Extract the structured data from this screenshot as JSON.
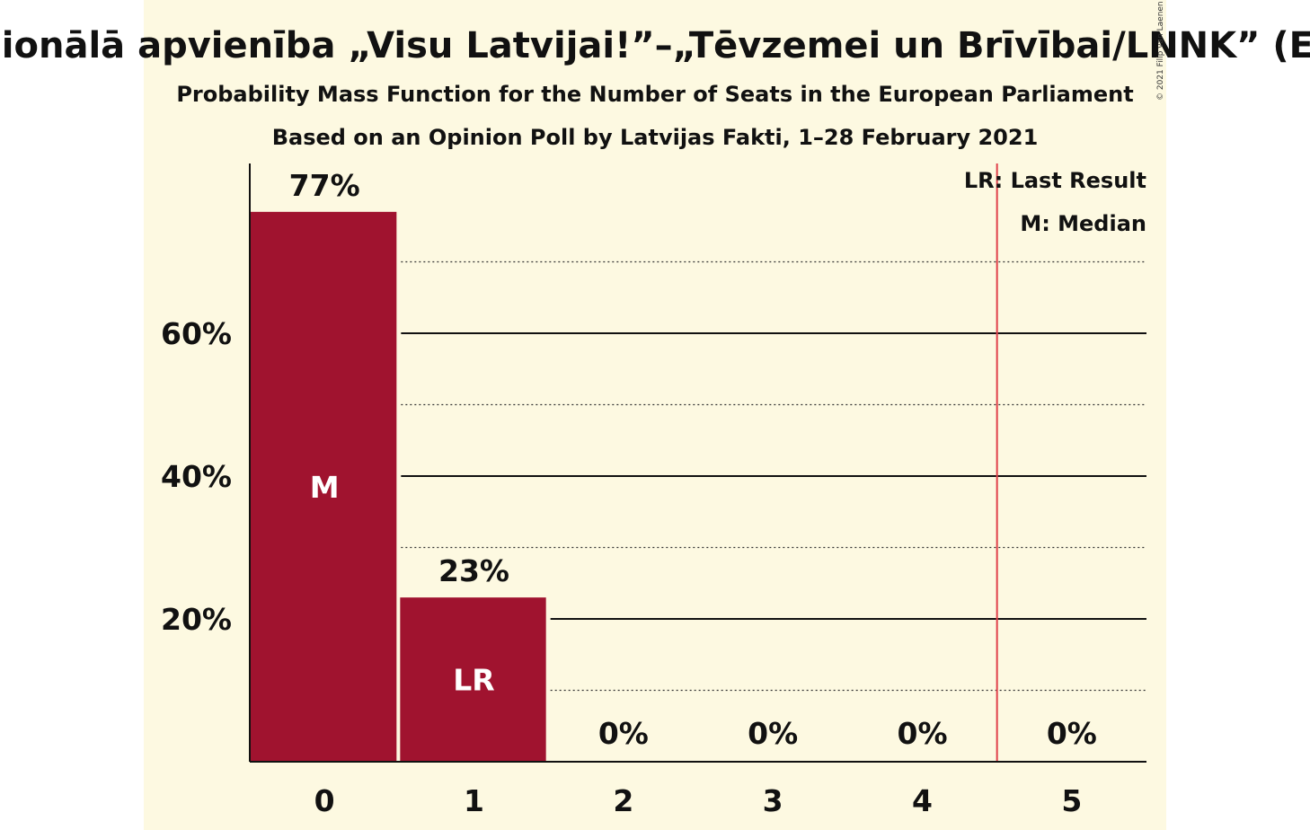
{
  "chart_data": {
    "type": "bar",
    "title": "Nacionālā apvienība „Visu Latvijai!”–„Tēvzemei un Brīvībai/LNNK” (ECR)",
    "subtitle": "Probability Mass Function for the Number of Seats in the European Parliament",
    "subtitle2": "Based on an Opinion Poll by Latvijas Fakti, 1–28 February 2021",
    "categories": [
      "0",
      "1",
      "2",
      "3",
      "4",
      "5"
    ],
    "values": [
      77,
      23,
      0,
      0,
      0,
      0
    ],
    "value_labels": [
      "77%",
      "23%",
      "0%",
      "0%",
      "0%",
      "0%"
    ],
    "bar_markers": [
      "M",
      "LR",
      "",
      "",
      "",
      ""
    ],
    "yticks": [
      20,
      40,
      60
    ],
    "ytick_labels": [
      "20%",
      "40%",
      "60%"
    ],
    "ylim": [
      0,
      84
    ],
    "minor_gridlines": [
      10,
      30,
      50,
      70
    ],
    "last_result_line_between": [
      4,
      5
    ],
    "legend": {
      "lr": "LR: Last Result",
      "m": "M: Median",
      "placement": "top-right"
    },
    "copyright": "© 2021 Filip van Laenen",
    "colors": {
      "bar": "#a0132f",
      "last_result_line": "#e0404a",
      "background": "#fdf9e1"
    }
  }
}
